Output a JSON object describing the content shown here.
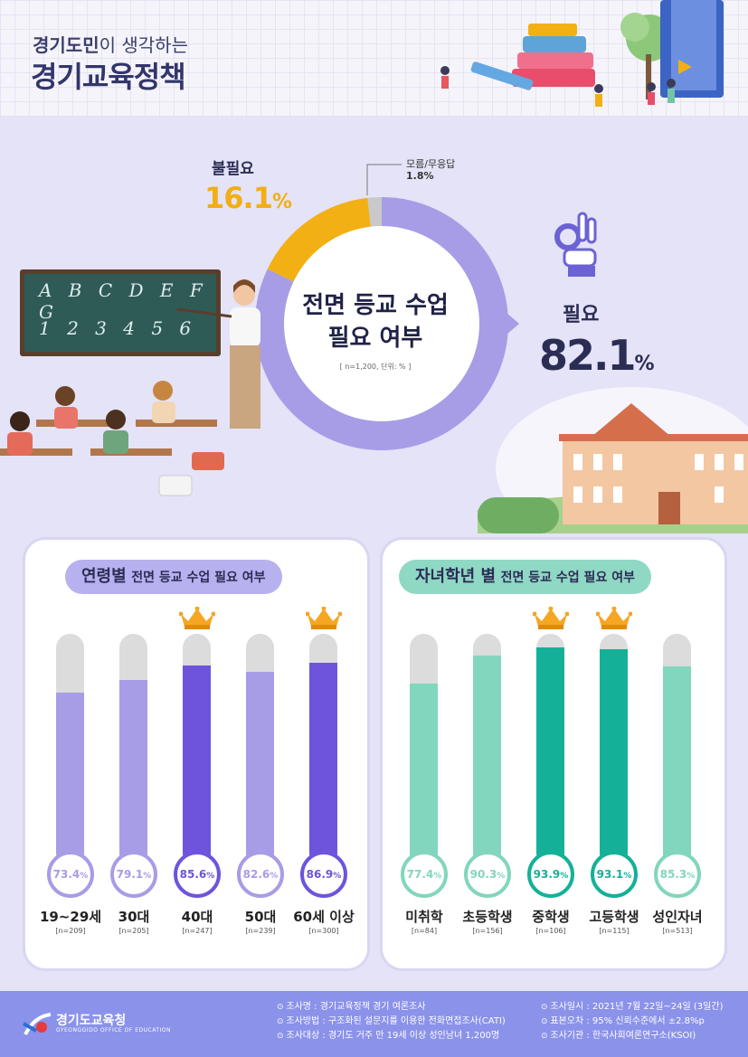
{
  "header": {
    "subtitle_bold": "경기도민",
    "subtitle_light": "이 생각하는",
    "title": "경기교육정책"
  },
  "donut": {
    "center_title_line1": "전면 등교 수업",
    "center_title_line2": "필요 여부",
    "note": "[ n=1,200, 단위: % ]",
    "unneeded_label": "불필요",
    "unneeded_value": "16.1",
    "unknown_label": "모름/무응답",
    "unknown_value": "1.8%",
    "needed_label": "필요",
    "needed_value": "82.1",
    "percent_sign": "%"
  },
  "board": {
    "row1": "A B C D E F G",
    "row2": "1 2 3 4 5 6"
  },
  "age_panel": {
    "title_big": "연령별",
    "title_small": "전면 등교 수업 필요 여부"
  },
  "grade_panel": {
    "title_big": "자녀학년 별",
    "title_small": "전면 등교 수업 필요 여부"
  },
  "chart_data": [
    {
      "type": "pie",
      "title": "전면 등교 수업 필요 여부",
      "categories": [
        "필요",
        "불필요",
        "모름/무응답"
      ],
      "values": [
        82.1,
        16.1,
        1.8
      ],
      "colors": [
        "#a69de6",
        "#f2b015",
        "#c9c9c9"
      ]
    },
    {
      "type": "bar",
      "title": "연령별 전면 등교 수업 필요 여부",
      "categories": [
        "19~29세",
        "30대",
        "40대",
        "50대",
        "60세 이상"
      ],
      "values": [
        73.4,
        79.1,
        85.6,
        82.6,
        86.9
      ],
      "value_labels": [
        "73.4",
        "79.1",
        "85.6",
        "82.6",
        "86.9"
      ],
      "n_labels": [
        "[n=209]",
        "[n=205]",
        "[n=247]",
        "[n=239]",
        "[n=300]"
      ],
      "highlighted": [
        false,
        false,
        true,
        false,
        true
      ],
      "ylim": [
        0,
        100
      ],
      "colors": {
        "normal": "#a69de6",
        "highlight": "#6e54dc"
      }
    },
    {
      "type": "bar",
      "title": "자녀학년 별 전면 등교 수업 필요 여부",
      "categories": [
        "미취학",
        "초등학생",
        "중학생",
        "고등학생",
        "성인자녀"
      ],
      "values": [
        77.4,
        90.3,
        93.9,
        93.1,
        85.3
      ],
      "value_labels": [
        "77.4",
        "90.3",
        "93.9",
        "93.1",
        "85.3"
      ],
      "n_labels": [
        "[n=84]",
        "[n=156]",
        "[n=106]",
        "[n=115]",
        "[n=513]"
      ],
      "highlighted": [
        false,
        false,
        true,
        true,
        false
      ],
      "ylim": [
        0,
        100
      ],
      "colors": {
        "normal": "#82d6bd",
        "highlight": "#14b198"
      }
    }
  ],
  "footer": {
    "logo_text": "경기도교육청",
    "logo_sub": "GYEONGGIDO OFFICE OF EDUCATION",
    "info_left": [
      "조사명 : 경기교육정책 경기 여론조사",
      "조사방법 : 구조화된 설문지를 이용한 전화면접조사(CATI)",
      "조사대상 : 경기도 거주 만 19세 이상 성인남녀 1,200명"
    ],
    "info_right": [
      "조사일시 : 2021년 7월 22일~24일 (3일간)",
      "표본오차 : 95% 신뢰수준에서 ±2.8%p",
      "조사기관 : 한국사회여론연구소(KSOI)"
    ]
  }
}
